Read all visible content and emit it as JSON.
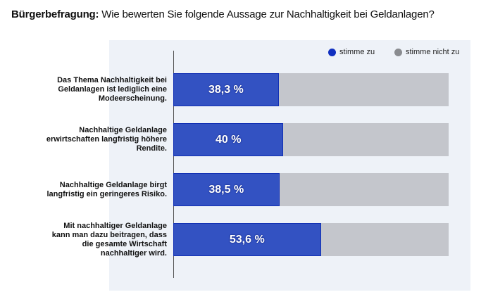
{
  "title_bold": "Bürgerbefragung:",
  "title_rest": " Wie bewerten Sie folgende Aussage zur Nachhaltigkeit bei Geldanlagen?",
  "chart_data": {
    "type": "bar",
    "orientation": "horizontal",
    "stacked": true,
    "categories": [
      "Das Thema Nachhaltigkeit bei Geldanlagen ist lediglich eine Modeerscheinung.",
      "Nachhaltige Geldanlage erwirtschaften langfristig höhere Rendite.",
      "Nachhaltige Geldanlage birgt langfristig ein geringeres Risiko.",
      "Mit nachhaltiger Geldanlage kann man dazu beitragen, dass die gesamte Wirtschaft nachhaltiger wird."
    ],
    "series": [
      {
        "name": "stimme zu",
        "values": [
          38.3,
          40,
          38.5,
          53.6
        ],
        "color": "#3352c2"
      },
      {
        "name": "stimme nicht zu",
        "values": [
          61.7,
          60,
          61.5,
          46.4
        ],
        "color": "#c4c6cc"
      }
    ],
    "data_labels": [
      "38,3 %",
      "40 %",
      "38,5 %",
      "53,6 %"
    ],
    "xlim": [
      0,
      100
    ],
    "legend": "top-right",
    "grid": false
  }
}
